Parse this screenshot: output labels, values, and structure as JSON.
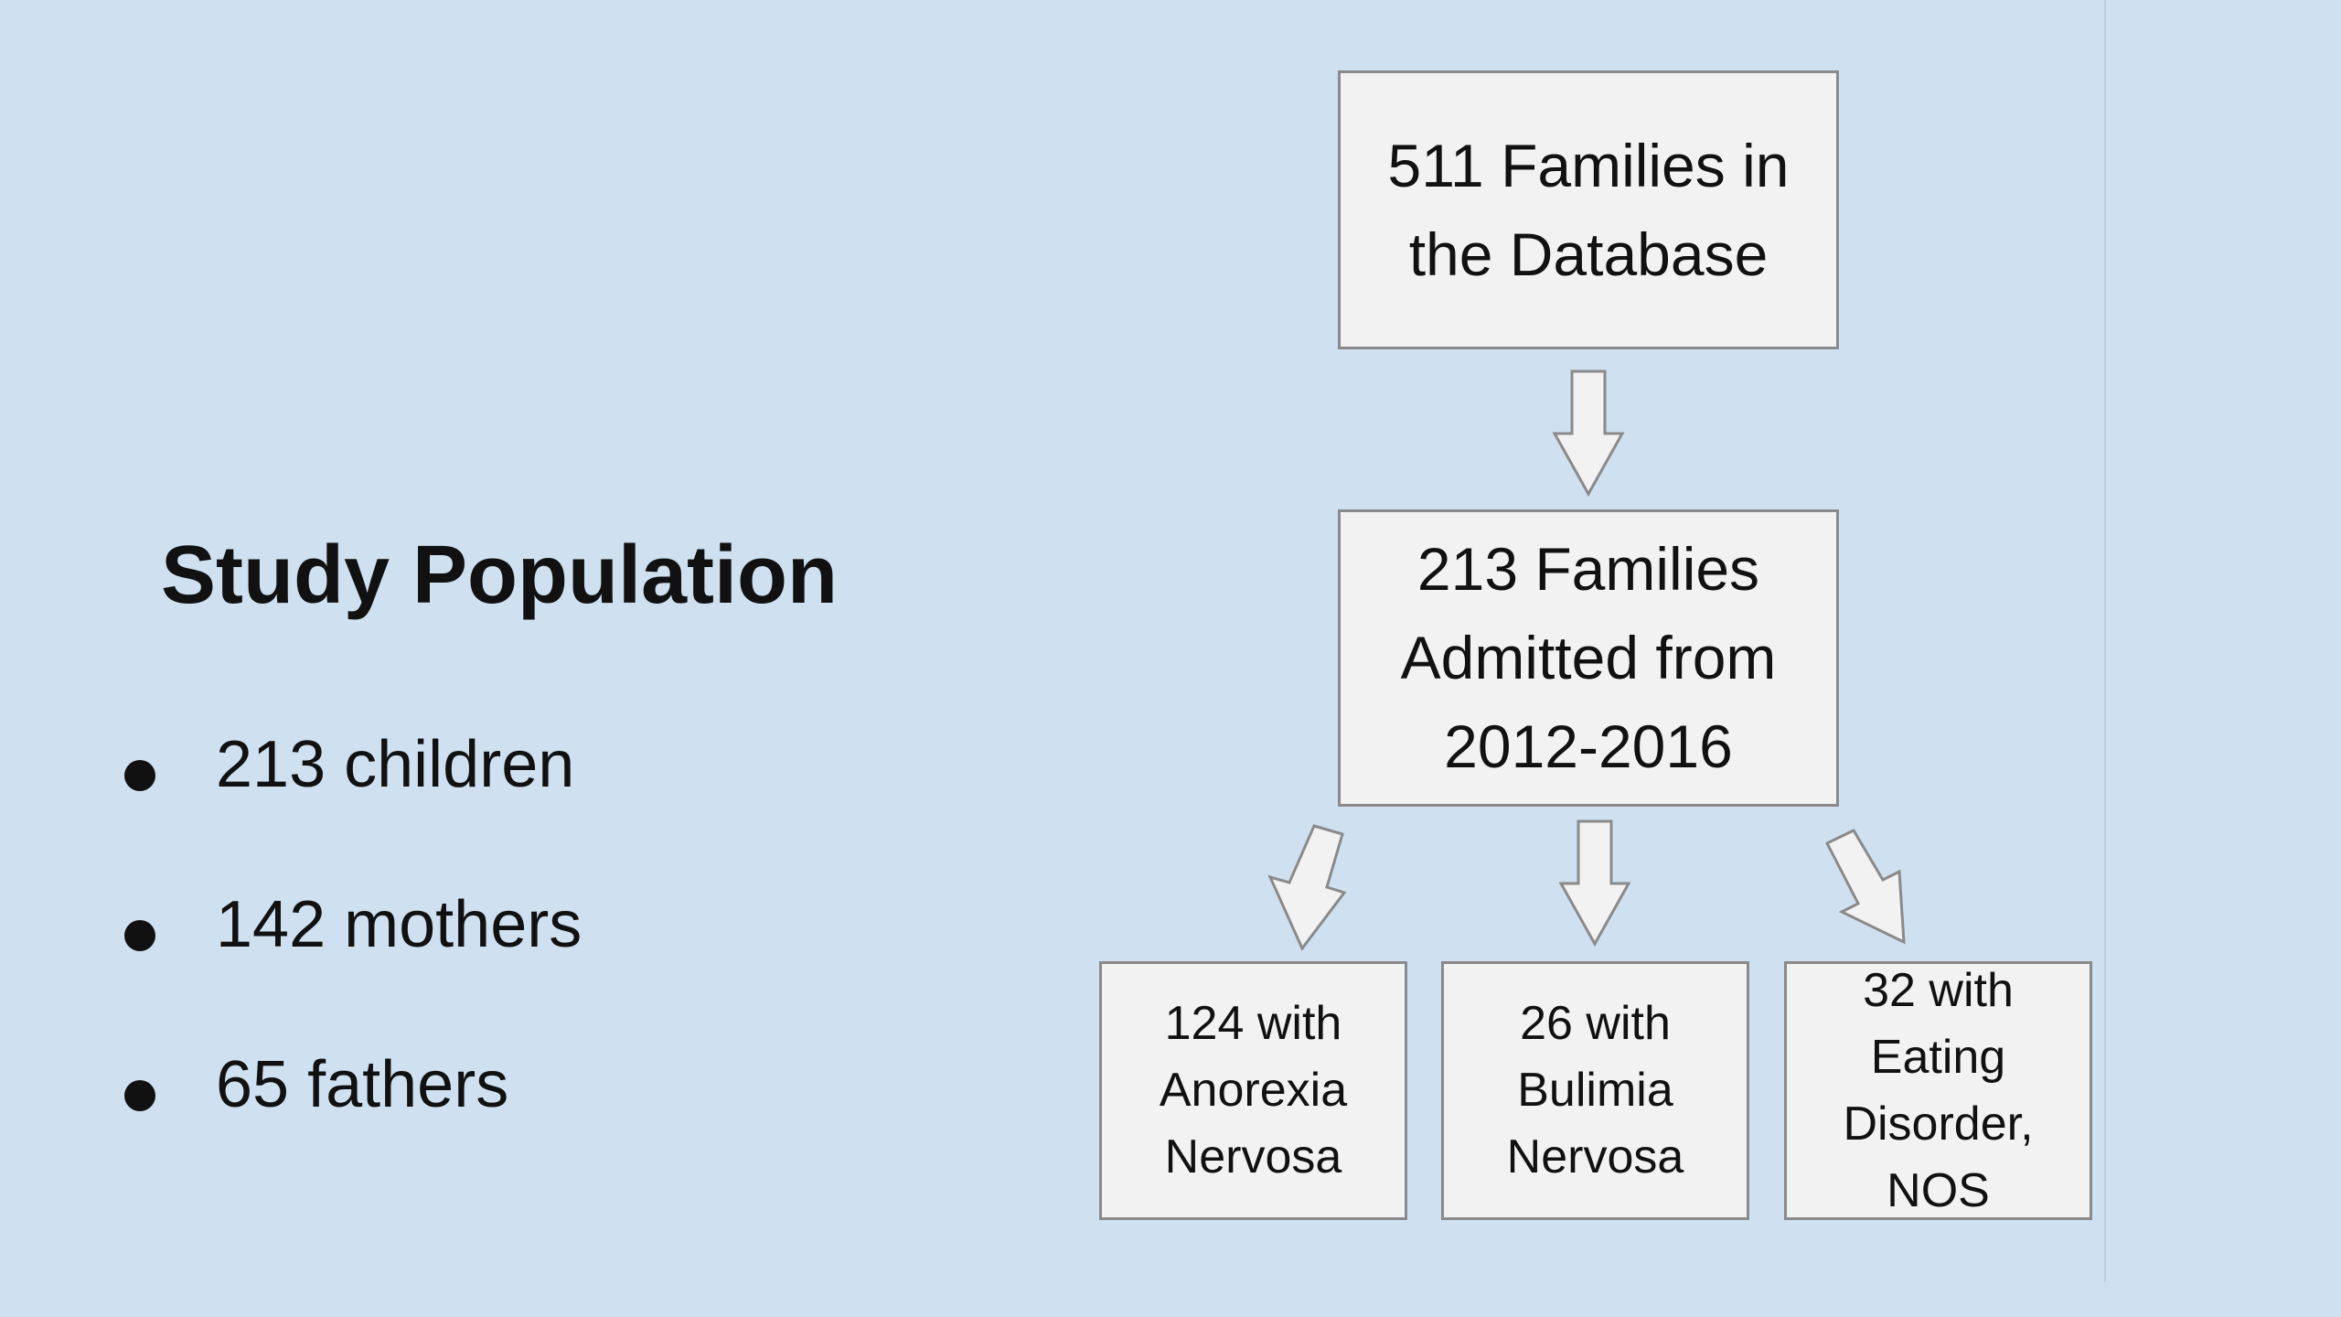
{
  "slide": {
    "title": "Study Population",
    "bullets": [
      {
        "text": "213 children"
      },
      {
        "text": "142 mothers"
      },
      {
        "text": "65 fathers"
      }
    ]
  },
  "flowchart": {
    "top": {
      "label": "511 Families in\nthe Database"
    },
    "middle": {
      "label": "213 Families\nAdmitted from\n2012-2016"
    },
    "outcomes": [
      {
        "label": "124 with\nAnorexia\nNervosa"
      },
      {
        "label": "26 with\nBulimia\nNervosa"
      },
      {
        "label": "32 with\nEating\nDisorder,\nNOS"
      }
    ]
  },
  "colors": {
    "background": "#cfe1f1",
    "box_fill": "#f2f2f2",
    "box_border": "#8a8a8a",
    "text": "#111111"
  }
}
